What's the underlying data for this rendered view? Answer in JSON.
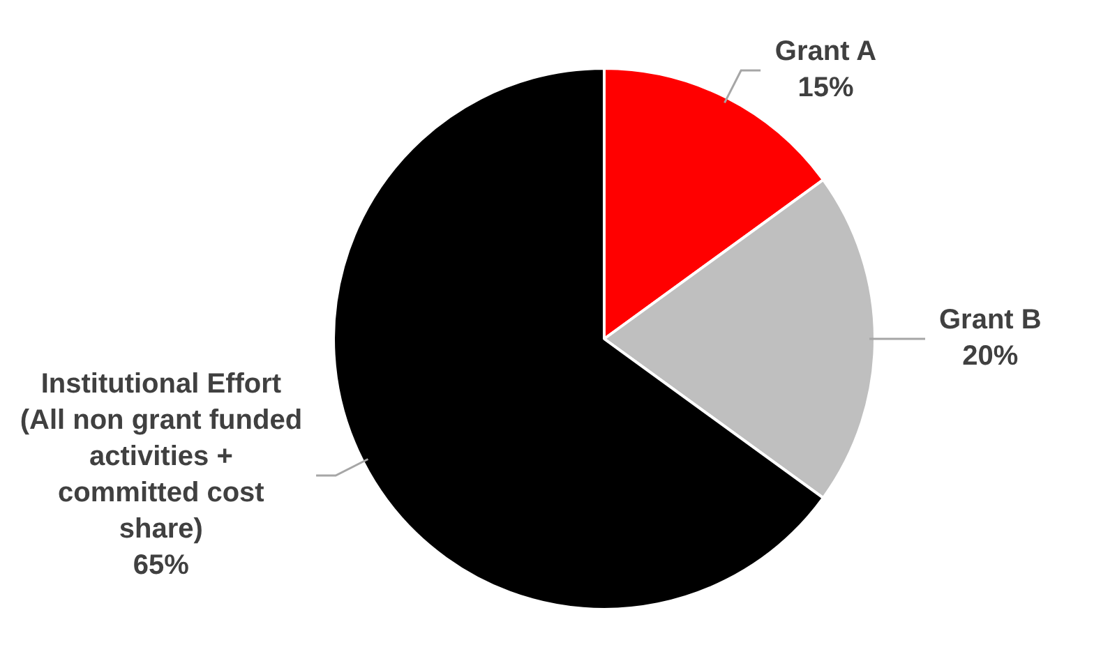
{
  "chart_data": {
    "type": "pie",
    "categories": [
      "Grant A",
      "Grant B",
      "Institutional Effort (All non grant funded activities + committed cost share)"
    ],
    "values": [
      15,
      20,
      65
    ],
    "colors": [
      "#ff0000",
      "#bfbfbf",
      "#000000"
    ],
    "value_labels": [
      "15%",
      "20%",
      "65%"
    ],
    "legend": false
  }
}
